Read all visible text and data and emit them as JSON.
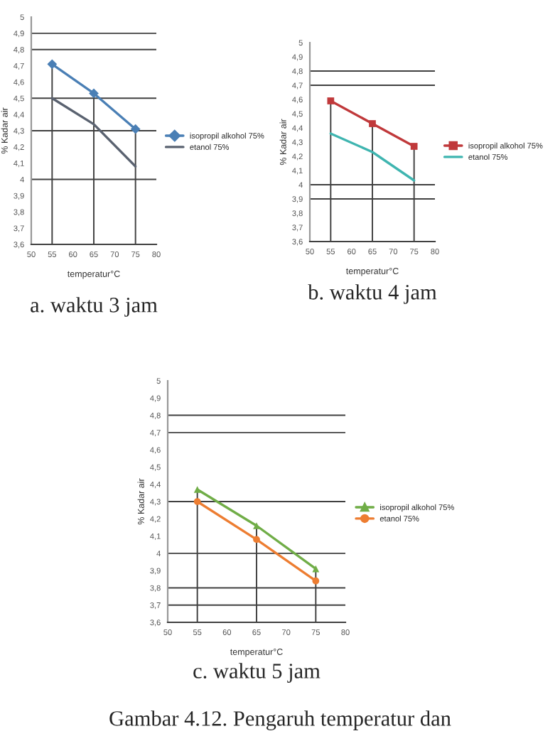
{
  "chart_data": [
    {
      "type": "line",
      "title": "a. waktu 3 jam",
      "xlabel": "temperatur°C",
      "ylabel": "% Kadar air",
      "x": [
        55,
        65,
        75
      ],
      "series": [
        {
          "name": "isopropil alkohol 75%",
          "color": "#4a7fb5",
          "marker": "diamond",
          "values": [
            4.71,
            4.53,
            4.31
          ]
        },
        {
          "name": "etanol 75%",
          "color": "#5a6270",
          "marker": "none",
          "values": [
            4.5,
            4.34,
            4.08
          ]
        }
      ],
      "xlim": [
        50,
        80
      ],
      "xticks": [
        50,
        55,
        60,
        65,
        70,
        75,
        80
      ],
      "ylim": [
        3.6,
        5
      ],
      "yticks": [
        {
          "value": 3.6,
          "label": "3,6"
        },
        {
          "value": 3.7,
          "label": "3,7"
        },
        {
          "value": 3.8,
          "label": "3,8"
        },
        {
          "value": 3.9,
          "label": "3,9"
        },
        4,
        {
          "value": 4.1,
          "label": "4,1"
        },
        {
          "value": 4.2,
          "label": "4,2"
        },
        {
          "value": 4.3,
          "label": "4,3"
        },
        {
          "value": 4.4,
          "label": "4,4"
        },
        {
          "value": 4.5,
          "label": "4,5"
        },
        {
          "value": 4.6,
          "label": "4,6"
        },
        {
          "value": 4.7,
          "label": "4,7"
        },
        {
          "value": 4.8,
          "label": "4,8"
        },
        {
          "value": 4.9,
          "label": "4,9"
        },
        5
      ],
      "ref_lines": [
        {
          "axis": "y",
          "value": 4.9,
          "color": "#404040"
        },
        {
          "axis": "y",
          "value": 4.8,
          "color": "#404040"
        },
        {
          "axis": "y",
          "value": 4.5,
          "color": "#404040"
        },
        {
          "axis": "y",
          "value": 4.3,
          "color": "#404040"
        },
        {
          "axis": "y",
          "value": 4,
          "color": "#404040"
        },
        {
          "axis": "x",
          "value": 55,
          "color": "#404040"
        },
        {
          "axis": "x",
          "value": 65,
          "color": "#404040"
        },
        {
          "axis": "x",
          "value": 75,
          "color": "#404040"
        }
      ],
      "legend": "right"
    },
    {
      "type": "line",
      "title": "b. waktu 4 jam",
      "xlabel": "temperatur°C",
      "ylabel": "% Kadar air",
      "x": [
        55,
        65,
        75
      ],
      "series": [
        {
          "name": "isopropil alkohol 75%",
          "color": "#c0393b",
          "marker": "square",
          "values": [
            4.59,
            4.43,
            4.27
          ]
        },
        {
          "name": "etanol 75%",
          "color": "#3fb5b0",
          "marker": "none",
          "values": [
            4.36,
            4.23,
            4.03
          ]
        }
      ],
      "xlim": [
        50,
        80
      ],
      "xticks": [
        50,
        55,
        60,
        65,
        70,
        75,
        80
      ],
      "ylim": [
        3.6,
        5
      ],
      "yticks": [
        {
          "value": 3.6,
          "label": "3,6"
        },
        {
          "value": 3.7,
          "label": "3,7"
        },
        {
          "value": 3.8,
          "label": "3,8"
        },
        {
          "value": 3.9,
          "label": "3,9"
        },
        4,
        {
          "value": 4.1,
          "label": "4,1"
        },
        {
          "value": 4.2,
          "label": "4,2"
        },
        {
          "value": 4.3,
          "label": "4,3"
        },
        {
          "value": 4.4,
          "label": "4,4"
        },
        {
          "value": 4.5,
          "label": "4,5"
        },
        {
          "value": 4.6,
          "label": "4,6"
        },
        {
          "value": 4.7,
          "label": "4,7"
        },
        {
          "value": 4.8,
          "label": "4,8"
        },
        {
          "value": 4.9,
          "label": "4,9"
        },
        5
      ],
      "ref_lines": [
        {
          "axis": "y",
          "value": 4.8,
          "color": "#404040"
        },
        {
          "axis": "y",
          "value": 4.7,
          "color": "#404040"
        },
        {
          "axis": "y",
          "value": 4,
          "color": "#404040"
        },
        {
          "axis": "y",
          "value": 3.9,
          "color": "#404040"
        },
        {
          "axis": "x",
          "value": 55,
          "color": "#404040"
        },
        {
          "axis": "x",
          "value": 65,
          "color": "#404040"
        },
        {
          "axis": "x",
          "value": 75,
          "color": "#404040"
        }
      ],
      "legend": "right"
    },
    {
      "type": "line",
      "title": "c. waktu 5 jam",
      "xlabel": "temperatur°C",
      "ylabel": "% Kadar air",
      "x": [
        55,
        65,
        75
      ],
      "series": [
        {
          "name": "isopropil alkohol 75%",
          "color": "#70ad47",
          "marker": "triangle",
          "values": [
            4.37,
            4.16,
            3.91
          ]
        },
        {
          "name": "etanol 75%",
          "color": "#ed7d31",
          "marker": "circle",
          "values": [
            4.3,
            4.08,
            3.84
          ]
        }
      ],
      "xlim": [
        50,
        80
      ],
      "xticks": [
        50,
        55,
        60,
        65,
        70,
        75,
        80
      ],
      "ylim": [
        3.6,
        5
      ],
      "yticks": [
        {
          "value": 3.6,
          "label": "3,6"
        },
        {
          "value": 3.7,
          "label": "3,7"
        },
        {
          "value": 3.8,
          "label": "3,8"
        },
        {
          "value": 3.9,
          "label": "3,9"
        },
        4,
        {
          "value": 4.1,
          "label": "4,1"
        },
        {
          "value": 4.2,
          "label": "4,2"
        },
        {
          "value": 4.3,
          "label": "4,3"
        },
        {
          "value": 4.4,
          "label": "4,4"
        },
        {
          "value": 4.5,
          "label": "4,5"
        },
        {
          "value": 4.6,
          "label": "4,6"
        },
        {
          "value": 4.7,
          "label": "4,7"
        },
        {
          "value": 4.8,
          "label": "4,8"
        },
        {
          "value": 4.9,
          "label": "4,9"
        },
        5
      ],
      "ref_lines": [
        {
          "axis": "y",
          "value": 4.8,
          "color": "#404040"
        },
        {
          "axis": "y",
          "value": 4.7,
          "color": "#404040"
        },
        {
          "axis": "y",
          "value": 4.3,
          "color": "#404040"
        },
        {
          "axis": "y",
          "value": 4,
          "color": "#404040"
        },
        {
          "axis": "y",
          "value": 3.8,
          "color": "#404040"
        },
        {
          "axis": "y",
          "value": 3.7,
          "color": "#404040"
        },
        {
          "axis": "x",
          "value": 55,
          "color": "#404040"
        },
        {
          "axis": "x",
          "value": 65,
          "color": "#404040"
        },
        {
          "axis": "x",
          "value": 75,
          "color": "#404040"
        }
      ],
      "annotations": [
        "Gambar 4.12. Pengaruh temperatur dan"
      ],
      "legend": "right"
    }
  ]
}
